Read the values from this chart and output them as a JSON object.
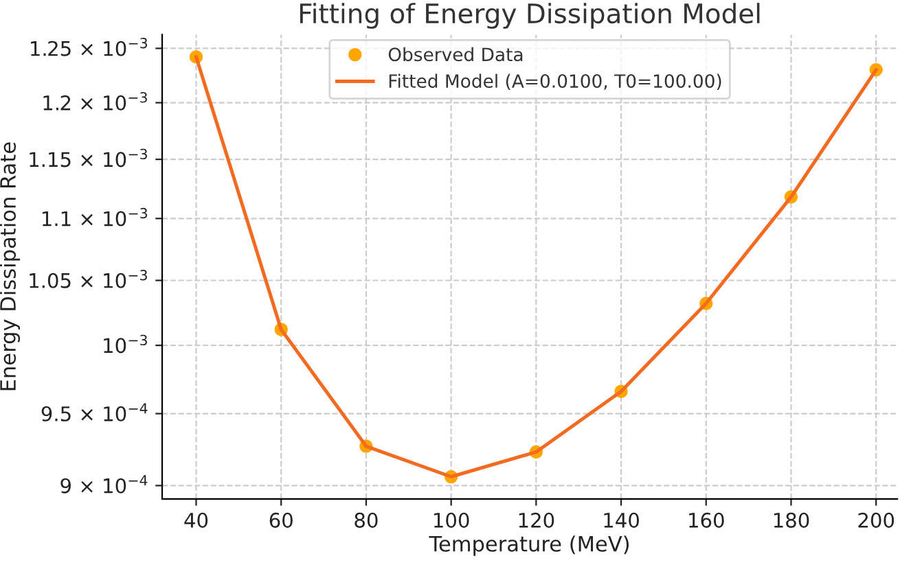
{
  "chart_data": {
    "type": "line",
    "title": "Fitting of Energy Dissipation Model",
    "xlabel": "Temperature (MeV)",
    "ylabel": "Energy Dissipation Rate",
    "x": [
      40,
      60,
      80,
      100,
      120,
      140,
      160,
      180,
      200
    ],
    "series": [
      {
        "name": "Observed Data",
        "type": "scatter",
        "color": "#ffa500",
        "marker": "circle",
        "values": [
          0.001242,
          0.001012,
          0.000927,
          0.000906,
          0.000923,
          0.000966,
          0.001032,
          0.001118,
          0.00123
        ]
      },
      {
        "name": "Fitted Model (A=0.0100, T0=100.00)",
        "color": "#f26b21",
        "line_style": "solid",
        "values": [
          0.001242,
          0.001012,
          0.000927,
          0.000906,
          0.000923,
          0.000966,
          0.001032,
          0.001118,
          0.00123
        ]
      }
    ],
    "log": "y",
    "xlim": [
      32,
      205
    ],
    "ylim": [
      0.000891,
      0.001263
    ],
    "xticks": [
      40,
      60,
      80,
      100,
      120,
      140,
      160,
      180,
      200
    ],
    "yticks": [
      {
        "value": 0.0009,
        "label": "9 × 10$^{−4}$"
      },
      {
        "value": 0.00095,
        "label": "9.5 × 10$^{−4}$"
      },
      {
        "value": 0.001,
        "label": "10$^{−3}$"
      },
      {
        "value": 0.00105,
        "label": "1.05 × 10$^{−3}$"
      },
      {
        "value": 0.0011,
        "label": "1.1 × 10$^{−3}$"
      },
      {
        "value": 0.00115,
        "label": "1.15 × 10$^{−3}$"
      },
      {
        "value": 0.0012,
        "label": "1.2 × 10$^{−3}$"
      },
      {
        "value": 0.00125,
        "label": "1.25 × 10$^{−3}$"
      }
    ],
    "grid": true,
    "legend": "top"
  }
}
